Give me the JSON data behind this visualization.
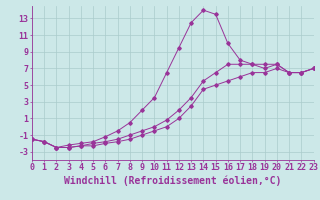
{
  "xlabel": "Windchill (Refroidissement éolien,°C)",
  "bg_color": "#cce8e8",
  "line_color": "#993399",
  "grid_color": "#aacccc",
  "xlim": [
    0,
    23
  ],
  "ylim": [
    -4,
    14.5
  ],
  "xticks": [
    0,
    1,
    2,
    3,
    4,
    5,
    6,
    7,
    8,
    9,
    10,
    11,
    12,
    13,
    14,
    15,
    16,
    17,
    18,
    19,
    20,
    21,
    22,
    23
  ],
  "yticks": [
    -3,
    -1,
    1,
    3,
    5,
    7,
    9,
    11,
    13
  ],
  "line1_x": [
    0,
    1,
    2,
    3,
    4,
    5,
    6,
    7,
    8,
    9,
    10,
    11,
    12,
    13,
    14,
    15,
    16,
    17,
    18,
    19,
    20,
    21,
    22,
    23
  ],
  "line1_y": [
    -1.5,
    -1.8,
    -2.5,
    -2.5,
    -2.3,
    -2.3,
    -2.0,
    -1.8,
    -1.5,
    -1.0,
    -0.5,
    0.0,
    1.0,
    2.5,
    4.5,
    5.0,
    5.5,
    6.0,
    6.5,
    6.5,
    7.0,
    6.5,
    6.5,
    7.0
  ],
  "line2_x": [
    0,
    1,
    2,
    3,
    4,
    5,
    6,
    7,
    8,
    9,
    10,
    11,
    12,
    13,
    14,
    15,
    16,
    17,
    18,
    19,
    20,
    21,
    22,
    23
  ],
  "line2_y": [
    -1.5,
    -1.8,
    -2.5,
    -2.5,
    -2.3,
    -2.0,
    -1.8,
    -1.5,
    -1.0,
    -0.5,
    0.0,
    0.8,
    2.0,
    3.5,
    5.5,
    6.5,
    7.5,
    7.5,
    7.5,
    7.0,
    7.5,
    6.5,
    6.5,
    7.0
  ],
  "line3_x": [
    0,
    1,
    2,
    3,
    4,
    5,
    6,
    7,
    8,
    9,
    10,
    11,
    12,
    13,
    14,
    15,
    16,
    17,
    18,
    19,
    20,
    21,
    22,
    23
  ],
  "line3_y": [
    -1.5,
    -1.8,
    -2.5,
    -2.2,
    -2.0,
    -1.8,
    -1.2,
    -0.5,
    0.5,
    2.0,
    3.5,
    6.5,
    9.5,
    12.5,
    14.0,
    13.5,
    10.0,
    8.0,
    7.5,
    7.5,
    7.5,
    6.5,
    6.5,
    7.0
  ],
  "xlabel_fontsize": 7,
  "tick_fontsize": 6
}
